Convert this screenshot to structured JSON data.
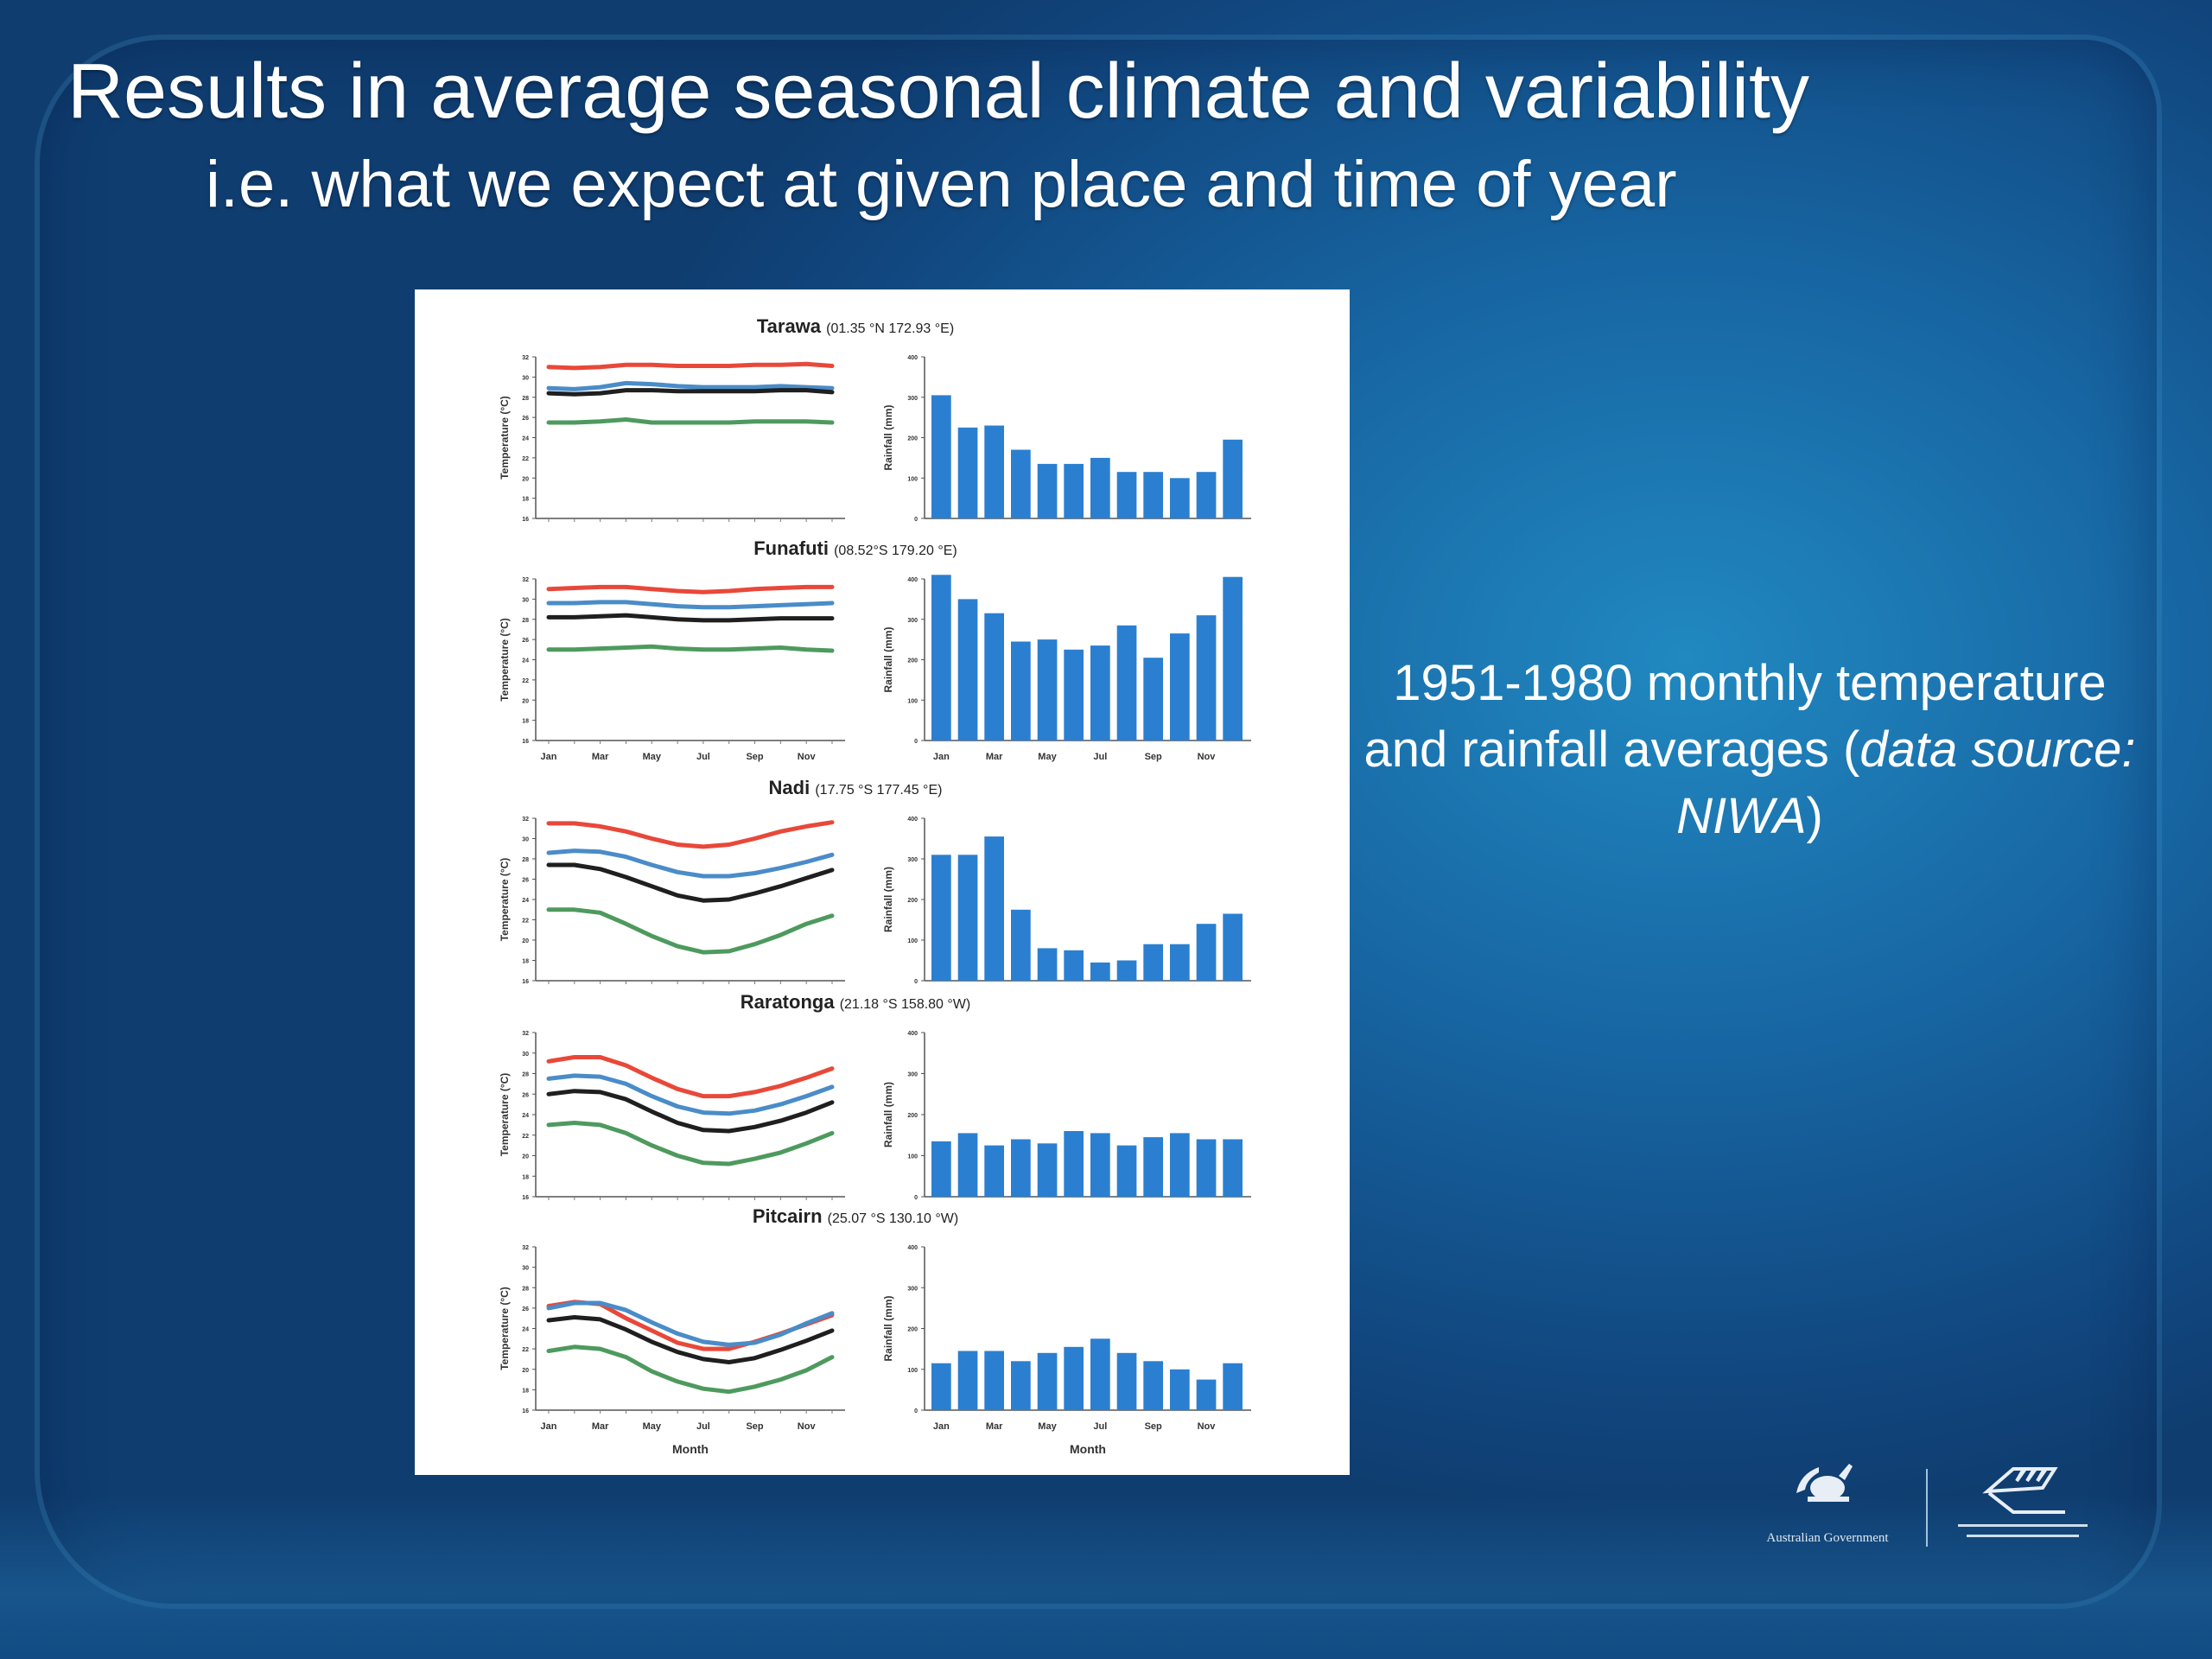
{
  "slide": {
    "title": "Results in average seasonal climate and variability",
    "subtitle": "i.e. what we expect at given place and time of year",
    "caption_main": "1951-1980 monthly temperature and rainfall averages (",
    "caption_source": "data source: NIWA",
    "caption_end": ")",
    "logos": [
      {
        "name": "australian-government-logo",
        "text": "Australian Government"
      },
      {
        "name": "institute-logo",
        "text": ""
      }
    ]
  },
  "colors": {
    "max_temp": "#e8483a",
    "sst": "#4a8cc8",
    "mean_temp": "#1f1f1f",
    "min_temp": "#4e9a5e",
    "rain_bar": "#2b7fd0"
  },
  "chart_data": [
    {
      "type": "line",
      "station": "Tarawa",
      "coords": "(01.35 °N  172.93 °E)",
      "ylabel": "Temperature (°C)",
      "ylim": [
        16,
        32
      ],
      "yticks": [
        16,
        18,
        20,
        22,
        24,
        26,
        28,
        30,
        32
      ],
      "xticks": [],
      "xlabel": "",
      "x": [
        1,
        2,
        3,
        4,
        5,
        6,
        7,
        8,
        9,
        10,
        11,
        12
      ],
      "series": [
        {
          "key": "max_temp",
          "values": [
            31.0,
            30.9,
            31.0,
            31.2,
            31.2,
            31.1,
            31.1,
            31.1,
            31.2,
            31.2,
            31.3,
            31.1
          ]
        },
        {
          "key": "sst",
          "values": [
            28.9,
            28.8,
            29.0,
            29.4,
            29.3,
            29.1,
            29.0,
            29.0,
            29.0,
            29.1,
            29.0,
            28.9
          ]
        },
        {
          "key": "mean_temp",
          "values": [
            28.4,
            28.3,
            28.4,
            28.7,
            28.7,
            28.6,
            28.6,
            28.6,
            28.6,
            28.7,
            28.7,
            28.5
          ]
        },
        {
          "key": "min_temp",
          "values": [
            25.5,
            25.5,
            25.6,
            25.8,
            25.5,
            25.5,
            25.5,
            25.5,
            25.6,
            25.6,
            25.6,
            25.5
          ]
        }
      ]
    },
    {
      "type": "bar",
      "station": "Tarawa",
      "ylabel": "Rainfall (mm)",
      "ylim": [
        0,
        400
      ],
      "yticks": [
        0,
        100,
        200,
        300,
        400
      ],
      "xticks": [],
      "xlabel": "",
      "values": [
        305,
        225,
        230,
        170,
        135,
        135,
        150,
        115,
        115,
        100,
        115,
        195
      ]
    },
    {
      "type": "line",
      "station": "Funafuti",
      "coords": "(08.52°S  179.20 °E)",
      "ylabel": "Temperature (°C)",
      "ylim": [
        16,
        32
      ],
      "yticks": [
        16,
        18,
        20,
        22,
        24,
        26,
        28,
        30,
        32
      ],
      "xticks": [
        "Jan",
        "Mar",
        "May",
        "Jul",
        "Sep",
        "Nov"
      ],
      "xlabel": "",
      "x": [
        1,
        2,
        3,
        4,
        5,
        6,
        7,
        8,
        9,
        10,
        11,
        12
      ],
      "series": [
        {
          "key": "max_temp",
          "values": [
            31.0,
            31.1,
            31.2,
            31.2,
            31.0,
            30.8,
            30.7,
            30.8,
            31.0,
            31.1,
            31.2,
            31.2
          ]
        },
        {
          "key": "sst",
          "values": [
            29.6,
            29.6,
            29.7,
            29.7,
            29.5,
            29.3,
            29.2,
            29.2,
            29.3,
            29.4,
            29.5,
            29.6
          ]
        },
        {
          "key": "mean_temp",
          "values": [
            28.2,
            28.2,
            28.3,
            28.4,
            28.2,
            28.0,
            27.9,
            27.9,
            28.0,
            28.1,
            28.1,
            28.1
          ]
        },
        {
          "key": "min_temp",
          "values": [
            25.0,
            25.0,
            25.1,
            25.2,
            25.3,
            25.1,
            25.0,
            25.0,
            25.1,
            25.2,
            25.0,
            24.9
          ]
        }
      ]
    },
    {
      "type": "bar",
      "station": "Funafuti",
      "ylabel": "Rainfall (mm)",
      "ylim": [
        0,
        400
      ],
      "yticks": [
        0,
        100,
        200,
        300,
        400
      ],
      "xticks": [
        "Jan",
        "Mar",
        "May",
        "Jul",
        "Sep",
        "Nov"
      ],
      "xlabel": "",
      "values": [
        410,
        350,
        315,
        245,
        250,
        225,
        235,
        285,
        205,
        265,
        310,
        405
      ]
    },
    {
      "type": "line",
      "station": "Nadi",
      "coords": "(17.75 °S  177.45 °E)",
      "ylabel": "Temperature (°C)",
      "ylim": [
        16,
        32
      ],
      "yticks": [
        16,
        18,
        20,
        22,
        24,
        26,
        28,
        30,
        32
      ],
      "xticks": [],
      "xlabel": "",
      "x": [
        1,
        2,
        3,
        4,
        5,
        6,
        7,
        8,
        9,
        10,
        11,
        12
      ],
      "series": [
        {
          "key": "max_temp",
          "values": [
            31.5,
            31.5,
            31.2,
            30.7,
            30.0,
            29.4,
            29.2,
            29.4,
            30.0,
            30.7,
            31.2,
            31.6
          ]
        },
        {
          "key": "sst",
          "values": [
            28.6,
            28.8,
            28.7,
            28.2,
            27.4,
            26.7,
            26.3,
            26.3,
            26.6,
            27.1,
            27.7,
            28.4
          ]
        },
        {
          "key": "mean_temp",
          "values": [
            27.4,
            27.4,
            27.0,
            26.2,
            25.3,
            24.4,
            23.9,
            24.0,
            24.6,
            25.3,
            26.1,
            26.9
          ]
        },
        {
          "key": "min_temp",
          "values": [
            23.0,
            23.0,
            22.7,
            21.6,
            20.4,
            19.4,
            18.8,
            18.9,
            19.6,
            20.5,
            21.6,
            22.4
          ]
        }
      ]
    },
    {
      "type": "bar",
      "station": "Nadi",
      "ylabel": "Rainfall (mm)",
      "ylim": [
        0,
        400
      ],
      "yticks": [
        0,
        100,
        200,
        300,
        400
      ],
      "xticks": [],
      "xlabel": "",
      "values": [
        310,
        310,
        355,
        175,
        80,
        75,
        45,
        50,
        90,
        90,
        140,
        165
      ]
    },
    {
      "type": "line",
      "station": "Raratonga",
      "coords": "(21.18 °S  158.80 °W)",
      "ylabel": "Temperature (°C)",
      "ylim": [
        16,
        32
      ],
      "yticks": [
        16,
        18,
        20,
        22,
        24,
        26,
        28,
        30,
        32
      ],
      "xticks": [],
      "xlabel": "",
      "x": [
        1,
        2,
        3,
        4,
        5,
        6,
        7,
        8,
        9,
        10,
        11,
        12
      ],
      "series": [
        {
          "key": "max_temp",
          "values": [
            29.2,
            29.6,
            29.6,
            28.8,
            27.6,
            26.5,
            25.8,
            25.8,
            26.2,
            26.8,
            27.6,
            28.5
          ]
        },
        {
          "key": "sst",
          "values": [
            27.5,
            27.8,
            27.7,
            27.0,
            25.8,
            24.8,
            24.2,
            24.1,
            24.4,
            25.0,
            25.8,
            26.7
          ]
        },
        {
          "key": "mean_temp",
          "values": [
            26.0,
            26.3,
            26.2,
            25.5,
            24.3,
            23.2,
            22.5,
            22.4,
            22.8,
            23.4,
            24.2,
            25.2
          ]
        },
        {
          "key": "min_temp",
          "values": [
            23.0,
            23.2,
            23.0,
            22.2,
            21.0,
            20.0,
            19.3,
            19.2,
            19.7,
            20.3,
            21.2,
            22.2
          ]
        }
      ]
    },
    {
      "type": "bar",
      "station": "Raratonga",
      "ylabel": "Rainfall (mm)",
      "ylim": [
        0,
        400
      ],
      "yticks": [
        0,
        100,
        200,
        300,
        400
      ],
      "xticks": [],
      "xlabel": "",
      "values": [
        135,
        155,
        125,
        140,
        130,
        160,
        155,
        125,
        145,
        155,
        140,
        140
      ]
    },
    {
      "type": "line",
      "station": "Pitcairn",
      "coords": "(25.07 °S  130.10 °W)",
      "ylabel": "Temperature (°C)",
      "ylim": [
        16,
        32
      ],
      "yticks": [
        16,
        18,
        20,
        22,
        24,
        26,
        28,
        30,
        32
      ],
      "xticks": [
        "Jan",
        "Mar",
        "May",
        "Jul",
        "Sep",
        "Nov"
      ],
      "xlabel": "Month",
      "x": [
        1,
        2,
        3,
        4,
        5,
        6,
        7,
        8,
        9,
        10,
        11,
        12
      ],
      "series": [
        {
          "key": "max_temp",
          "values": [
            26.2,
            26.6,
            26.4,
            25.0,
            23.8,
            22.6,
            22.0,
            22.0,
            22.7,
            23.5,
            24.4,
            25.3
          ]
        },
        {
          "key": "sst",
          "values": [
            26.0,
            26.5,
            26.5,
            25.8,
            24.6,
            23.5,
            22.7,
            22.4,
            22.6,
            23.4,
            24.5,
            25.5
          ]
        },
        {
          "key": "mean_temp",
          "values": [
            24.8,
            25.1,
            24.9,
            23.9,
            22.7,
            21.7,
            21.0,
            20.7,
            21.1,
            21.9,
            22.8,
            23.8
          ]
        },
        {
          "key": "min_temp",
          "values": [
            21.8,
            22.2,
            22.0,
            21.2,
            19.8,
            18.8,
            18.1,
            17.8,
            18.3,
            19.0,
            19.9,
            21.2
          ]
        }
      ]
    },
    {
      "type": "bar",
      "station": "Pitcairn",
      "ylabel": "Rainfall (mm)",
      "ylim": [
        0,
        400
      ],
      "yticks": [
        0,
        100,
        200,
        300,
        400
      ],
      "xticks": [
        "Jan",
        "Mar",
        "May",
        "Jul",
        "Sep",
        "Nov"
      ],
      "xlabel": "Month",
      "values": [
        115,
        145,
        145,
        120,
        140,
        155,
        175,
        140,
        120,
        100,
        75,
        115
      ]
    }
  ]
}
